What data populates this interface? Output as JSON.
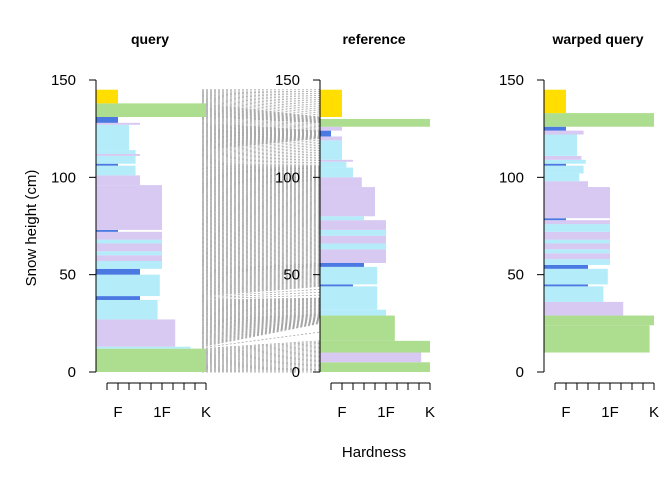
{
  "chart_data": {
    "type": "bar",
    "ylabel": "Snow height (cm)",
    "xlabel": "Hardness",
    "ylim": [
      0,
      150
    ],
    "yticks": [
      "0",
      "50",
      "100",
      "150"
    ],
    "xlim": [
      0,
      5
    ],
    "xticks": [
      "F",
      "1F",
      "K"
    ],
    "xtick_values": [
      1,
      2,
      3
    ],
    "grid": false,
    "grain_colors": {
      "PP": "#ffde00",
      "MF": "#addd8e",
      "FC": "#b5ecfa",
      "DH": "#4a79e2",
      "DF": "#d7c9f2",
      "RG": "#d7c9f2"
    },
    "connector_color": "#a6a6a6",
    "panels": [
      {
        "title": "query",
        "layers": [
          {
            "bottom": 0,
            "top": 12,
            "hardness": 5,
            "grain": "MF"
          },
          {
            "bottom": 12,
            "top": 13,
            "hardness": 4.3,
            "grain": "FC"
          },
          {
            "bottom": 13,
            "top": 27,
            "hardness": 3.6,
            "grain": "DF"
          },
          {
            "bottom": 27,
            "top": 37,
            "hardness": 2.8,
            "grain": "FC"
          },
          {
            "bottom": 37,
            "top": 39,
            "hardness": 2,
            "grain": "DH"
          },
          {
            "bottom": 39,
            "top": 50,
            "hardness": 2.9,
            "grain": "FC"
          },
          {
            "bottom": 50,
            "top": 53,
            "hardness": 2,
            "grain": "DH"
          },
          {
            "bottom": 53,
            "top": 57,
            "hardness": 3,
            "grain": "FC"
          },
          {
            "bottom": 57,
            "top": 60,
            "hardness": 3,
            "grain": "DF"
          },
          {
            "bottom": 60,
            "top": 62,
            "hardness": 3,
            "grain": "FC"
          },
          {
            "bottom": 62,
            "top": 66,
            "hardness": 3,
            "grain": "DF"
          },
          {
            "bottom": 66,
            "top": 68,
            "hardness": 3,
            "grain": "FC"
          },
          {
            "bottom": 68,
            "top": 72,
            "hardness": 3,
            "grain": "DF"
          },
          {
            "bottom": 72,
            "top": 73,
            "hardness": 1,
            "grain": "DH"
          },
          {
            "bottom": 73,
            "top": 96,
            "hardness": 3,
            "grain": "DF"
          },
          {
            "bottom": 96,
            "top": 101,
            "hardness": 2,
            "grain": "DF"
          },
          {
            "bottom": 101,
            "top": 106,
            "hardness": 1.8,
            "grain": "FC"
          },
          {
            "bottom": 106,
            "top": 107,
            "hardness": 1,
            "grain": "DH"
          },
          {
            "bottom": 107,
            "top": 111,
            "hardness": 1.8,
            "grain": "FC"
          },
          {
            "bottom": 111,
            "top": 112,
            "hardness": 2,
            "grain": "DF"
          },
          {
            "bottom": 112,
            "top": 114,
            "hardness": 1.8,
            "grain": "FC"
          },
          {
            "bottom": 114,
            "top": 127,
            "hardness": 1.5,
            "grain": "FC"
          },
          {
            "bottom": 127,
            "top": 128,
            "hardness": 2,
            "grain": "DF"
          },
          {
            "bottom": 128,
            "top": 131,
            "hardness": 1,
            "grain": "DH"
          },
          {
            "bottom": 131,
            "top": 138,
            "hardness": 5,
            "grain": "MF"
          },
          {
            "bottom": 138,
            "top": 145,
            "hardness": 1,
            "grain": "PP"
          }
        ]
      },
      {
        "title": "reference",
        "layers": [
          {
            "bottom": 0,
            "top": 5,
            "hardness": 5,
            "grain": "MF"
          },
          {
            "bottom": 5,
            "top": 10,
            "hardness": 4.6,
            "grain": "DF"
          },
          {
            "bottom": 10,
            "top": 16,
            "hardness": 5,
            "grain": "MF"
          },
          {
            "bottom": 16,
            "top": 29,
            "hardness": 3.4,
            "grain": "MF"
          },
          {
            "bottom": 29,
            "top": 32,
            "hardness": 3,
            "grain": "FC"
          },
          {
            "bottom": 32,
            "top": 44,
            "hardness": 2.6,
            "grain": "FC"
          },
          {
            "bottom": 44,
            "top": 45,
            "hardness": 1.5,
            "grain": "DH"
          },
          {
            "bottom": 45,
            "top": 54,
            "hardness": 2.6,
            "grain": "FC"
          },
          {
            "bottom": 54,
            "top": 56,
            "hardness": 2,
            "grain": "DH"
          },
          {
            "bottom": 56,
            "top": 63,
            "hardness": 3,
            "grain": "DF"
          },
          {
            "bottom": 63,
            "top": 66,
            "hardness": 3,
            "grain": "FC"
          },
          {
            "bottom": 66,
            "top": 70,
            "hardness": 3,
            "grain": "DF"
          },
          {
            "bottom": 70,
            "top": 73,
            "hardness": 3,
            "grain": "FC"
          },
          {
            "bottom": 73,
            "top": 78,
            "hardness": 3,
            "grain": "DF"
          },
          {
            "bottom": 78,
            "top": 80,
            "hardness": 2,
            "grain": "FC"
          },
          {
            "bottom": 80,
            "top": 84,
            "hardness": 2.5,
            "grain": "DF"
          },
          {
            "bottom": 84,
            "top": 95,
            "hardness": 2.5,
            "grain": "DF"
          },
          {
            "bottom": 95,
            "top": 100,
            "hardness": 1.9,
            "grain": "DF"
          },
          {
            "bottom": 100,
            "top": 105,
            "hardness": 1.5,
            "grain": "FC"
          },
          {
            "bottom": 105,
            "top": 108,
            "hardness": 1.2,
            "grain": "FC"
          },
          {
            "bottom": 108,
            "top": 109,
            "hardness": 1.5,
            "grain": "DF"
          },
          {
            "bottom": 109,
            "top": 119,
            "hardness": 1,
            "grain": "FC"
          },
          {
            "bottom": 119,
            "top": 121,
            "hardness": 1,
            "grain": "DF"
          },
          {
            "bottom": 121,
            "top": 124,
            "hardness": 0.5,
            "grain": "DH"
          },
          {
            "bottom": 124,
            "top": 126,
            "hardness": 1,
            "grain": "DF"
          },
          {
            "bottom": 126,
            "top": 130,
            "hardness": 5,
            "grain": "MF"
          },
          {
            "bottom": 131,
            "top": 145,
            "hardness": 1,
            "grain": "PP"
          }
        ]
      },
      {
        "title": "warped query",
        "layers": [
          {
            "bottom": 10,
            "top": 24,
            "hardness": 4.8,
            "grain": "MF"
          },
          {
            "bottom": 24,
            "top": 29,
            "hardness": 5,
            "grain": "MF"
          },
          {
            "bottom": 29,
            "top": 36,
            "hardness": 3.6,
            "grain": "DF"
          },
          {
            "bottom": 36,
            "top": 44,
            "hardness": 2.7,
            "grain": "FC"
          },
          {
            "bottom": 44,
            "top": 45,
            "hardness": 2,
            "grain": "DH"
          },
          {
            "bottom": 45,
            "top": 53,
            "hardness": 2.9,
            "grain": "FC"
          },
          {
            "bottom": 53,
            "top": 55,
            "hardness": 2,
            "grain": "DH"
          },
          {
            "bottom": 55,
            "top": 58,
            "hardness": 3,
            "grain": "FC"
          },
          {
            "bottom": 58,
            "top": 61,
            "hardness": 3,
            "grain": "DF"
          },
          {
            "bottom": 61,
            "top": 63,
            "hardness": 3,
            "grain": "FC"
          },
          {
            "bottom": 63,
            "top": 66,
            "hardness": 3,
            "grain": "DF"
          },
          {
            "bottom": 66,
            "top": 68,
            "hardness": 3,
            "grain": "FC"
          },
          {
            "bottom": 68,
            "top": 72,
            "hardness": 3,
            "grain": "DF"
          },
          {
            "bottom": 72,
            "top": 76,
            "hardness": 3,
            "grain": "FC"
          },
          {
            "bottom": 76,
            "top": 78,
            "hardness": 3,
            "grain": "DF"
          },
          {
            "bottom": 78,
            "top": 79,
            "hardness": 1,
            "grain": "DH"
          },
          {
            "bottom": 79,
            "top": 95,
            "hardness": 3,
            "grain": "DF"
          },
          {
            "bottom": 95,
            "top": 98,
            "hardness": 2,
            "grain": "DF"
          },
          {
            "bottom": 98,
            "top": 102,
            "hardness": 1.6,
            "grain": "FC"
          },
          {
            "bottom": 102,
            "top": 106,
            "hardness": 1.8,
            "grain": "FC"
          },
          {
            "bottom": 106,
            "top": 107,
            "hardness": 1,
            "grain": "DH"
          },
          {
            "bottom": 107,
            "top": 109,
            "hardness": 1.9,
            "grain": "FC"
          },
          {
            "bottom": 109,
            "top": 111,
            "hardness": 1.7,
            "grain": "DF"
          },
          {
            "bottom": 111,
            "top": 122,
            "hardness": 1.5,
            "grain": "FC"
          },
          {
            "bottom": 122,
            "top": 124,
            "hardness": 1.8,
            "grain": "DF"
          },
          {
            "bottom": 124,
            "top": 126,
            "hardness": 1,
            "grain": "DH"
          },
          {
            "bottom": 126,
            "top": 133,
            "hardness": 5,
            "grain": "MF"
          },
          {
            "bottom": 133,
            "top": 145,
            "hardness": 1,
            "grain": "PP"
          }
        ]
      }
    ],
    "alignment": [
      {
        "query": 0,
        "reference": 0
      },
      {
        "query": 12,
        "reference": 16
      },
      {
        "query": 13,
        "reference": 25
      },
      {
        "query": 27,
        "reference": 30
      },
      {
        "query": 37,
        "reference": 38
      },
      {
        "query": 39,
        "reference": 44
      },
      {
        "query": 50,
        "reference": 54
      },
      {
        "query": 53,
        "reference": 56
      },
      {
        "query": 72,
        "reference": 75
      },
      {
        "query": 96,
        "reference": 98
      },
      {
        "query": 106,
        "reference": 106
      },
      {
        "query": 114,
        "reference": 120
      },
      {
        "query": 128,
        "reference": 124
      },
      {
        "query": 131,
        "reference": 128
      },
      {
        "query": 138,
        "reference": 131
      },
      {
        "query": 145,
        "reference": 145
      }
    ]
  }
}
